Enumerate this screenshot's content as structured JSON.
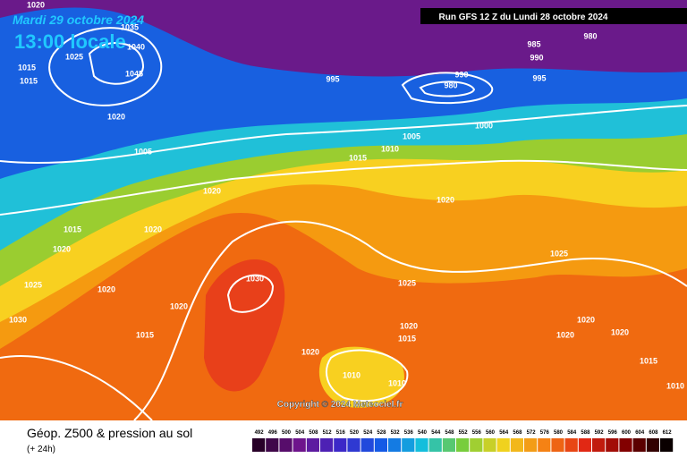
{
  "header": {
    "date": "Mardi 29 octobre 2024",
    "time": "13:00 locale",
    "run": "Run GFS 12 Z du Lundi 28 octobre 2024"
  },
  "isobars": [
    "1020",
    "1015",
    "1015",
    "1025",
    "1035",
    "1040",
    "1045",
    "1020",
    "1005",
    "995",
    "990",
    "980",
    "985",
    "990",
    "995",
    "980",
    "1000",
    "1005",
    "1010",
    "1015",
    "1020",
    "1020",
    "1015",
    "1020",
    "1020",
    "1025",
    "1020",
    "1030",
    "1020",
    "1030",
    "1015",
    "1025",
    "1025",
    "1020",
    "1015",
    "1020",
    "1020",
    "1020",
    "1020",
    "1010",
    "1010",
    "1015",
    "1010"
  ],
  "copyright": "Copyright © 2024 Meteociel.fr",
  "footer": {
    "title": "Géop. Z500 & pression au sol",
    "subtitle": "(+ 24h)"
  },
  "colorbar": [
    492,
    496,
    500,
    504,
    508,
    512,
    516,
    520,
    524,
    528,
    532,
    536,
    540,
    544,
    548,
    552,
    556,
    560,
    564,
    568,
    572,
    576,
    580,
    584,
    588,
    592,
    596,
    600,
    604,
    608,
    612
  ]
}
